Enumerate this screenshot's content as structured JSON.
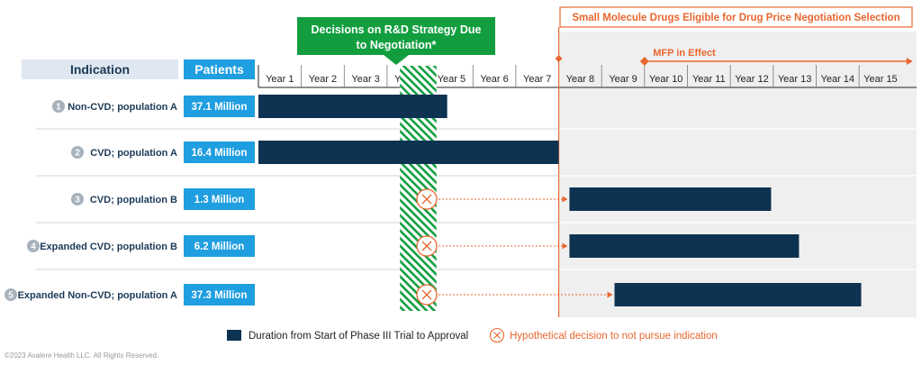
{
  "chart_data": {
    "type": "bar",
    "subtype": "gantt",
    "header_indication": "Indication",
    "header_patients": "Patients",
    "decision_banner": "Decisions on R&D Strategy Due to Negotiation*",
    "negotiation_banner": "Small Molecule Drugs Eligible for Drug Price Negotiation Selection",
    "mfp_label": "MFP in Effect",
    "years": [
      "Year 1",
      "Year 2",
      "Year 3",
      "Year 4",
      "Year 5",
      "Year 6",
      "Year 7",
      "Year 8",
      "Year 9",
      "Year 10",
      "Year 11",
      "Year 12",
      "Year 13",
      "Year 14",
      "Year 15"
    ],
    "negotiation_start": 7,
    "mfp_start": 9,
    "mfp_end": 15,
    "decision_window": [
      3.3,
      4.15
    ],
    "rows": [
      {
        "num": "1",
        "indication": "Non-CVD;  population A",
        "patients": "37.1 Million",
        "start": 0,
        "end": 4.4,
        "not_pursued": false
      },
      {
        "num": "2",
        "indication": "CVD; population A",
        "patients": "16.4 Million",
        "start": 0,
        "end": 7.0,
        "not_pursued": false
      },
      {
        "num": "3",
        "indication": "CVD; population B",
        "patients": "1.3 Million",
        "start": 7.25,
        "end": 11.95,
        "not_pursued": true
      },
      {
        "num": "4",
        "indication": "Expanded CVD; population B",
        "patients": "6.2 Million",
        "start": 7.25,
        "end": 12.6,
        "not_pursued": true
      },
      {
        "num": "5",
        "indication": "Expanded Non-CVD;  population A",
        "patients": "37.3 Million",
        "start": 8.3,
        "end": 14.05,
        "not_pursued": true
      }
    ],
    "legend_bar": "Duration from Start of Phase III Trial to Approval",
    "legend_x": "Hypothetical decision to not pursue indication",
    "copyright": "©2023 Avalere Health LLC. All Rights Reserved.",
    "colors": {
      "bar": "#0e3251",
      "patients": "#1f9ee0",
      "accent": "#e8672f",
      "green": "#129e3f",
      "header_bg": "#dfe8f0",
      "circle": "#a7b2bc",
      "shade": "#efefef",
      "text": "#1b3a57"
    }
  }
}
